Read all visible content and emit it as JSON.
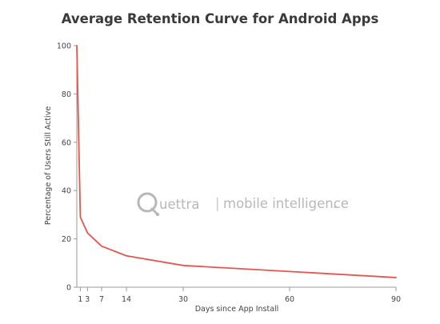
{
  "chart_data": {
    "type": "line",
    "title": "Average Retention Curve for Android Apps",
    "xlabel": "Days since App Install",
    "ylabel": "Percentage of Users Still Active",
    "xlim": [
      0,
      90
    ],
    "ylim": [
      0,
      100
    ],
    "x_ticks": [
      1,
      3,
      7,
      14,
      30,
      60,
      90
    ],
    "y_ticks": [
      0,
      20,
      40,
      60,
      80,
      100
    ],
    "grid": false,
    "series": [
      {
        "color": "#e8554e",
        "x": [
          0,
          1,
          3,
          7,
          14,
          30,
          60,
          90
        ],
        "y": [
          100,
          29,
          22.5,
          17,
          13,
          9,
          6.5,
          4
        ]
      }
    ]
  },
  "watermark": {
    "brand": "uettra",
    "separator": "|",
    "tagline": "mobile intelligence",
    "dot": ".",
    "color": "#b8b8b8",
    "icon": "quettra-q-logo-icon"
  }
}
